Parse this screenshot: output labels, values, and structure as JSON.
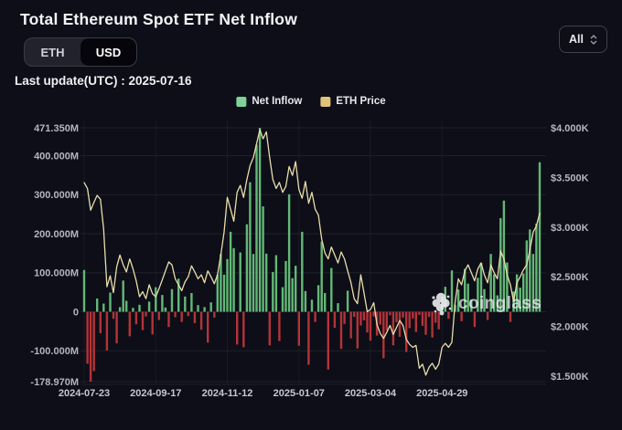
{
  "header": {
    "title": "Total Ethereum Spot ETF Net Inflow",
    "last_update": "Last update(UTC) : 2025-07-16"
  },
  "currency_toggle": {
    "eth": "ETH",
    "usd": "USD",
    "selected": "USD"
  },
  "range_select": {
    "value": "All"
  },
  "legend": {
    "net_inflow": "Net Inflow",
    "eth_price": "ETH Price"
  },
  "watermark": {
    "text": "coinglass"
  },
  "colors": {
    "background": "#0d0e17",
    "bar_positive": "#63b877",
    "bar_negative": "#b43339",
    "price_line": "#e9ddab",
    "grid": "#20202c",
    "grid_vertical": "#1a1a25",
    "axis_text": "#b4b5c0",
    "x_axis_text": "#c6c7d1",
    "legend_green": "#7fd198",
    "legend_tan": "#e4c279"
  },
  "chart_data": {
    "type": "bar",
    "title": "Total Ethereum Spot ETF Net Inflow",
    "start_date": "2024-07-23",
    "end_date": "2025-07-16",
    "legend_position": "top",
    "grid": true,
    "x_axis": {
      "tick_indices": [
        0,
        22,
        44,
        66,
        88,
        110
      ],
      "tick_labels": [
        "2024-07-23",
        "2024-09-17",
        "2024-11-12",
        "2025-01-07",
        "2025-03-04",
        "2025-04-29"
      ]
    },
    "y_axis_left": {
      "labels": [
        "471.350M",
        "400.000M",
        "300.000M",
        "200.000M",
        "100.000M",
        "0",
        "-100.000M",
        "-178.970M"
      ],
      "values": [
        471.35,
        400,
        300,
        200,
        100,
        0,
        -100,
        -178.97
      ]
    },
    "y_axis_right": {
      "labels": [
        "$4.000K",
        "$3.500K",
        "$3.000K",
        "$2.500K",
        "$2.000K",
        "$1.500K"
      ],
      "values": [
        4000,
        3500,
        3000,
        2500,
        2000,
        1500
      ]
    },
    "series": [
      {
        "name": "Net Inflow",
        "type": "bar",
        "unit": "million USD",
        "values": [
          106.8,
          -133,
          -178.97,
          -152,
          34,
          -55,
          21,
          -99,
          49,
          -18,
          -81,
          12,
          80,
          28,
          -63,
          10,
          -32,
          18,
          -47,
          -12,
          26,
          -58,
          63,
          -21,
          43,
          11,
          -39,
          58,
          -14,
          85,
          -26,
          39,
          -11,
          48,
          -29,
          17,
          -46,
          12,
          -79,
          24,
          -15,
          95,
          148,
          95,
          135,
          205,
          163,
          -84,
          152,
          -91,
          224,
          332,
          148,
          428,
          471.35,
          270,
          149,
          -86,
          102,
          145,
          -75,
          63,
          130,
          301,
          86,
          118,
          -87,
          205,
          53,
          -136,
          31,
          -26,
          68,
          180,
          48,
          -148,
          112,
          -41,
          22,
          -95,
          -31,
          54,
          -68,
          -13,
          -94,
          -35,
          -22,
          -53,
          -74,
          -12,
          -61,
          -33,
          -119,
          -48,
          -9,
          -86,
          -27,
          -64,
          -15,
          -103,
          -42,
          -17,
          -52,
          -8,
          -36,
          -59,
          -13,
          -66,
          -28,
          -45,
          38,
          64,
          -18,
          106,
          18,
          57,
          -24,
          110,
          72,
          31,
          -39,
          87,
          125,
          58,
          -21,
          148,
          96,
          42,
          240,
          285,
          126,
          -26,
          52,
          96,
          62,
          98,
          183,
          211,
          148,
          226,
          383.1
        ]
      },
      {
        "name": "ETH Price",
        "type": "line",
        "unit": "USD",
        "values": [
          3448,
          3390,
          3170,
          3250,
          3320,
          3280,
          2980,
          2400,
          2510,
          2340,
          2600,
          2720,
          2620,
          2550,
          2680,
          2580,
          2460,
          2300,
          2350,
          2280,
          2420,
          2330,
          2300,
          2380,
          2470,
          2560,
          2650,
          2620,
          2480,
          2420,
          2360,
          2450,
          2500,
          2610,
          2550,
          2480,
          2520,
          2440,
          2560,
          2500,
          2430,
          2520,
          2720,
          2950,
          3300,
          3180,
          3060,
          3350,
          3420,
          3300,
          3480,
          3620,
          3700,
          3840,
          3980,
          3890,
          3960,
          3700,
          3480,
          3390,
          3450,
          3350,
          3410,
          3610,
          3520,
          3660,
          3380,
          3290,
          3460,
          3240,
          3350,
          3180,
          3120,
          2880,
          2740,
          2680,
          2800,
          2720,
          2640,
          2750,
          2680,
          2560,
          2440,
          2280,
          2230,
          2520,
          2340,
          2150,
          2170,
          2240,
          2020,
          1930,
          1880,
          1940,
          2010,
          1920,
          1990,
          2060,
          2010,
          1870,
          1820,
          1790,
          1810,
          1580,
          1620,
          1510,
          1590,
          1630,
          1570,
          1620,
          1790,
          1830,
          1790,
          1840,
          2240,
          2480,
          2420,
          2560,
          2620,
          2540,
          2460,
          2580,
          2640,
          2520,
          2440,
          2620,
          2540,
          2480,
          2760,
          2680,
          2520,
          2420,
          2250,
          2440,
          2500,
          2570,
          2620,
          2770,
          2950,
          3010,
          3140
        ]
      }
    ]
  }
}
